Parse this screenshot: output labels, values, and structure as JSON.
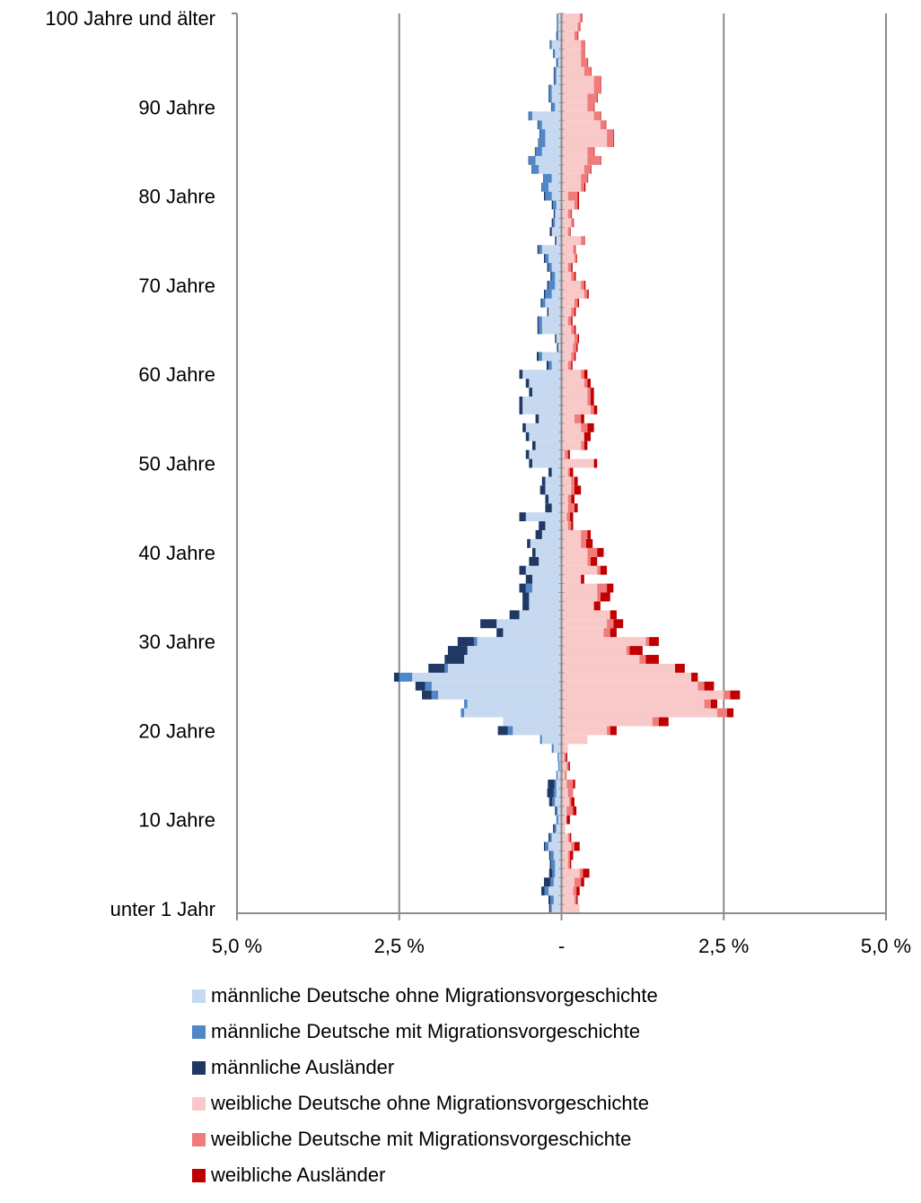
{
  "chart_data": {
    "type": "bar",
    "orientation": "horizontal-diverging",
    "title": "",
    "xlabel": "",
    "ylabel": "",
    "x_ticks": [
      "5,0 %",
      "2,5 %",
      "-",
      "2,5 %",
      "5,0 %"
    ],
    "xlim": [
      -5.0,
      5.0
    ],
    "y_ticks": [
      {
        "age": 0,
        "label": "unter 1 Jahr"
      },
      {
        "age": 10,
        "label": "10 Jahre"
      },
      {
        "age": 20,
        "label": "20 Jahre"
      },
      {
        "age": 30,
        "label": "30 Jahre"
      },
      {
        "age": 40,
        "label": "40 Jahre"
      },
      {
        "age": 50,
        "label": "50 Jahre"
      },
      {
        "age": 60,
        "label": "60 Jahre"
      },
      {
        "age": 70,
        "label": "70 Jahre"
      },
      {
        "age": 80,
        "label": "80 Jahre"
      },
      {
        "age": 90,
        "label": "90 Jahre"
      },
      {
        "age": 100,
        "label": "100 Jahre und älter"
      }
    ],
    "ages": [
      0,
      1,
      2,
      3,
      4,
      5,
      6,
      7,
      8,
      9,
      10,
      11,
      12,
      13,
      14,
      15,
      16,
      17,
      18,
      19,
      20,
      21,
      22,
      23,
      24,
      25,
      26,
      27,
      28,
      29,
      30,
      31,
      32,
      33,
      34,
      35,
      36,
      37,
      38,
      39,
      40,
      41,
      42,
      43,
      44,
      45,
      46,
      47,
      48,
      49,
      50,
      51,
      52,
      53,
      54,
      55,
      56,
      57,
      58,
      59,
      60,
      61,
      62,
      63,
      64,
      65,
      66,
      67,
      68,
      69,
      70,
      71,
      72,
      73,
      74,
      75,
      76,
      77,
      78,
      79,
      80,
      81,
      82,
      83,
      84,
      85,
      86,
      87,
      88,
      89,
      90,
      91,
      92,
      93,
      94,
      95,
      96,
      97,
      98,
      99,
      100
    ],
    "grid": "vertical",
    "legend_position": "bottom",
    "series": [
      {
        "name": "männliche Deutsche ohne Migrationsvorgeschichte",
        "side": "male",
        "color": "#c6d9f1",
        "values": [
          0.15,
          0.12,
          0.2,
          0.12,
          0.1,
          0.1,
          0.12,
          0.2,
          0.15,
          0.08,
          0.05,
          0.06,
          0.1,
          0.08,
          0.08,
          0.06,
          0.03,
          0.04,
          0.12,
          0.3,
          0.75,
          0.9,
          1.5,
          1.45,
          1.9,
          2.0,
          2.3,
          1.75,
          1.5,
          1.45,
          1.3,
          0.9,
          1.0,
          0.65,
          0.5,
          0.5,
          0.45,
          0.45,
          0.55,
          0.35,
          0.4,
          0.48,
          0.3,
          0.25,
          0.55,
          0.15,
          0.2,
          0.25,
          0.25,
          0.15,
          0.45,
          0.5,
          0.4,
          0.5,
          0.55,
          0.35,
          0.6,
          0.6,
          0.45,
          0.5,
          0.6,
          0.15,
          0.3,
          0.05,
          0.08,
          0.3,
          0.3,
          0.2,
          0.25,
          0.15,
          0.1,
          0.1,
          0.15,
          0.2,
          0.3,
          0.08,
          0.15,
          0.1,
          0.1,
          0.08,
          0.15,
          0.2,
          0.15,
          0.35,
          0.4,
          0.3,
          0.25,
          0.25,
          0.3,
          0.45,
          0.1,
          0.15,
          0.15,
          0.08,
          0.08,
          0.05,
          0.1,
          0.15,
          0.05,
          0.05,
          0.05
        ]
      },
      {
        "name": "männliche Deutsche mit Migrationsvorgeschichte",
        "side": "male",
        "color": "#4f87c8",
        "values": [
          0.02,
          0.05,
          0.06,
          0.05,
          0.04,
          0.06,
          0.05,
          0.05,
          0.03,
          0.03,
          0.03,
          0.02,
          0.04,
          0.04,
          0.03,
          0.02,
          0.02,
          0.02,
          0.03,
          0.03,
          0.08,
          0.0,
          0.05,
          0.05,
          0.1,
          0.1,
          0.2,
          0.05,
          0.0,
          0.0,
          0.05,
          0.0,
          0.0,
          0.0,
          0.0,
          0.0,
          0.1,
          0.0,
          0.0,
          0.0,
          0.0,
          0.0,
          0.0,
          0.0,
          0.0,
          0.0,
          0.0,
          0.0,
          0.0,
          0.0,
          0.0,
          0.0,
          0.0,
          0.0,
          0.0,
          0.0,
          0.0,
          0.0,
          0.0,
          0.0,
          0.0,
          0.05,
          0.05,
          0.0,
          0.0,
          0.05,
          0.05,
          0.0,
          0.05,
          0.1,
          0.1,
          0.05,
          0.05,
          0.05,
          0.05,
          0.0,
          0.0,
          0.03,
          0.0,
          0.05,
          0.1,
          0.1,
          0.12,
          0.1,
          0.1,
          0.1,
          0.1,
          0.08,
          0.06,
          0.05,
          0.05,
          0.04,
          0.04,
          0.03,
          0.03,
          0.02,
          0.02,
          0.02,
          0.02,
          0.01,
          0.01
        ]
      },
      {
        "name": "männliche Ausländer",
        "side": "male",
        "color": "#1f3864",
        "values": [
          0.02,
          0.03,
          0.05,
          0.1,
          0.05,
          0.02,
          0.02,
          0.02,
          0.02,
          0.02,
          0.0,
          0.02,
          0.05,
          0.1,
          0.1,
          0.0,
          0.0,
          0.0,
          0.0,
          0.0,
          0.15,
          0.0,
          0.0,
          0.0,
          0.15,
          0.15,
          0.08,
          0.25,
          0.3,
          0.3,
          0.25,
          0.1,
          0.25,
          0.15,
          0.1,
          0.1,
          0.1,
          0.1,
          0.1,
          0.15,
          0.05,
          0.05,
          0.1,
          0.1,
          0.1,
          0.1,
          0.05,
          0.08,
          0.05,
          0.05,
          0.05,
          0.05,
          0.05,
          0.05,
          0.05,
          0.05,
          0.05,
          0.05,
          0.05,
          0.05,
          0.05,
          0.03,
          0.03,
          0.02,
          0.02,
          0.02,
          0.02,
          0.02,
          0.02,
          0.02,
          0.02,
          0.02,
          0.02,
          0.02,
          0.02,
          0.02,
          0.03,
          0.02,
          0.02,
          0.02,
          0.02,
          0.01,
          0.01,
          0.01,
          0.01,
          0.01,
          0.01,
          0.01,
          0.01,
          0.01,
          0.01,
          0.01,
          0.01,
          0.01,
          0.01,
          0.01,
          0.01,
          0.01,
          0.01,
          0.01,
          0.01
        ]
      },
      {
        "name": "weibliche Deutsche ohne Migrationsvorgeschichte",
        "side": "female",
        "color": "#f9c9c9",
        "values": [
          0.28,
          0.2,
          0.18,
          0.2,
          0.28,
          0.1,
          0.1,
          0.15,
          0.1,
          0.06,
          0.08,
          0.08,
          0.12,
          0.1,
          0.08,
          0.05,
          0.08,
          0.04,
          0.1,
          0.4,
          0.7,
          1.4,
          2.4,
          2.2,
          2.5,
          2.1,
          2.0,
          1.75,
          1.2,
          1.0,
          1.3,
          0.65,
          0.7,
          0.75,
          0.5,
          0.55,
          0.55,
          0.3,
          0.55,
          0.4,
          0.4,
          0.3,
          0.3,
          0.1,
          0.08,
          0.1,
          0.1,
          0.15,
          0.15,
          0.1,
          0.5,
          0.05,
          0.3,
          0.35,
          0.3,
          0.2,
          0.45,
          0.4,
          0.4,
          0.35,
          0.3,
          0.1,
          0.15,
          0.18,
          0.2,
          0.15,
          0.1,
          0.15,
          0.2,
          0.35,
          0.3,
          0.15,
          0.1,
          0.2,
          0.18,
          0.3,
          0.1,
          0.15,
          0.1,
          0.2,
          0.1,
          0.3,
          0.3,
          0.35,
          0.4,
          0.4,
          0.7,
          0.7,
          0.6,
          0.5,
          0.4,
          0.4,
          0.5,
          0.5,
          0.35,
          0.3,
          0.3,
          0.3,
          0.2,
          0.25,
          0.28
        ]
      },
      {
        "name": "weibliche Deutsche mit Migrationsvorgeschichte",
        "side": "female",
        "color": "#f07b7b",
        "values": [
          0.0,
          0.03,
          0.05,
          0.1,
          0.05,
          0.03,
          0.03,
          0.05,
          0.03,
          0.0,
          0.0,
          0.1,
          0.03,
          0.08,
          0.1,
          0.03,
          0.03,
          0.03,
          0.0,
          0.0,
          0.05,
          0.1,
          0.15,
          0.1,
          0.1,
          0.1,
          0.0,
          0.0,
          0.1,
          0.05,
          0.05,
          0.1,
          0.1,
          0.0,
          0.0,
          0.05,
          0.15,
          0.0,
          0.05,
          0.05,
          0.15,
          0.08,
          0.1,
          0.05,
          0.05,
          0.1,
          0.05,
          0.05,
          0.05,
          0.03,
          0.0,
          0.05,
          0.05,
          0.0,
          0.1,
          0.1,
          0.05,
          0.05,
          0.05,
          0.05,
          0.05,
          0.05,
          0.05,
          0.05,
          0.05,
          0.05,
          0.05,
          0.05,
          0.05,
          0.05,
          0.05,
          0.05,
          0.05,
          0.03,
          0.03,
          0.05,
          0.03,
          0.03,
          0.05,
          0.05,
          0.15,
          0.05,
          0.1,
          0.1,
          0.2,
          0.1,
          0.1,
          0.1,
          0.08,
          0.1,
          0.1,
          0.15,
          0.1,
          0.1,
          0.1,
          0.1,
          0.05,
          0.05,
          0.05,
          0.03,
          0.03
        ]
      },
      {
        "name": "weibliche Ausländer",
        "side": "female",
        "color": "#c00000",
        "values": [
          0.0,
          0.02,
          0.05,
          0.05,
          0.1,
          0.02,
          0.05,
          0.08,
          0.02,
          0.0,
          0.05,
          0.05,
          0.05,
          0.0,
          0.03,
          0.0,
          0.02,
          0.02,
          0.0,
          0.0,
          0.1,
          0.15,
          0.1,
          0.1,
          0.15,
          0.15,
          0.1,
          0.15,
          0.2,
          0.2,
          0.15,
          0.1,
          0.15,
          0.1,
          0.1,
          0.15,
          0.1,
          0.05,
          0.1,
          0.1,
          0.1,
          0.1,
          0.05,
          0.03,
          0.05,
          0.05,
          0.05,
          0.1,
          0.05,
          0.05,
          0.05,
          0.03,
          0.05,
          0.1,
          0.1,
          0.05,
          0.05,
          0.05,
          0.05,
          0.05,
          0.05,
          0.02,
          0.02,
          0.02,
          0.02,
          0.02,
          0.02,
          0.02,
          0.02,
          0.02,
          0.02,
          0.02,
          0.02,
          0.01,
          0.01,
          0.01,
          0.01,
          0.01,
          0.01,
          0.02,
          0.02,
          0.02,
          0.01,
          0.01,
          0.01,
          0.01,
          0.01,
          0.01,
          0.01,
          0.01,
          0.01,
          0.01,
          0.01,
          0.01,
          0.01,
          0.01,
          0.01,
          0.01,
          0.01,
          0.01,
          0.01
        ]
      }
    ]
  }
}
